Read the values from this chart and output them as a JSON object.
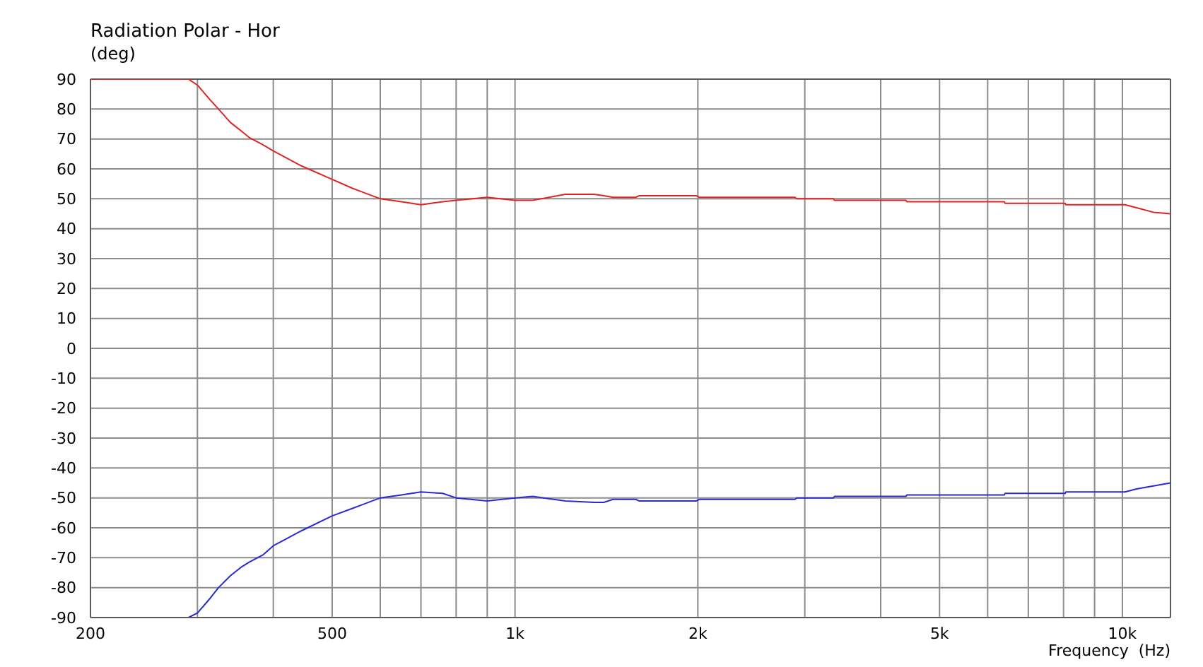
{
  "chart_data": {
    "type": "line",
    "title": "Radiation Polar - Hor",
    "ylabel": "(deg)",
    "xlabel": "Frequency  (Hz)",
    "x": [
      200,
      290,
      300,
      315,
      325,
      340,
      355,
      365,
      385,
      400,
      445,
      500,
      540,
      600,
      650,
      700,
      760,
      800,
      900,
      1000,
      1070,
      1210,
      1350,
      1400,
      1450,
      1580,
      1600,
      1990,
      2010,
      2890,
      2910,
      3340,
      3360,
      4400,
      4420,
      6390,
      6410,
      8050,
      8070,
      10100,
      10550,
      11250,
      12000
    ],
    "series": [
      {
        "color": "#e02424",
        "values": [
          90,
          90,
          88,
          83,
          80,
          75.5,
          72.5,
          70.5,
          68,
          66,
          61,
          56.5,
          53.5,
          50,
          49,
          48,
          49,
          49.5,
          50.5,
          49.5,
          49.5,
          51.5,
          51.5,
          51,
          50.5,
          50.5,
          51,
          51,
          50.5,
          50.5,
          50,
          50,
          49.5,
          49.5,
          49,
          49,
          48.5,
          48.5,
          48,
          48,
          47,
          45.5,
          45
        ]
      },
      {
        "color": "#2a2ad2",
        "values": [
          -90,
          -90,
          -88.5,
          -83.5,
          -80,
          -76,
          -73,
          -71.5,
          -69,
          -66,
          -61,
          -56,
          -53.5,
          -50,
          -49,
          -48,
          -48.5,
          -50,
          -51,
          -50,
          -49.5,
          -51,
          -51.5,
          -51.5,
          -50.5,
          -50.5,
          -51,
          -51,
          -50.5,
          -50.5,
          -50,
          -50,
          -49.5,
          -49.5,
          -49,
          -49,
          -48.5,
          -48.5,
          -48,
          -48,
          -47,
          -46,
          -45
        ]
      }
    ],
    "xlim": [
      200,
      12000
    ],
    "xticks": [
      200,
      {
        "value": 300,
        "label": null
      },
      {
        "value": 400,
        "label": null
      },
      500,
      {
        "value": 600,
        "label": null
      },
      {
        "value": 700,
        "label": null
      },
      {
        "value": 800,
        "label": null
      },
      {
        "value": 900,
        "label": null
      },
      {
        "value": 1000,
        "label": "1k"
      },
      {
        "value": 2000,
        "label": "2k"
      },
      {
        "value": 3000,
        "label": null
      },
      {
        "value": 4000,
        "label": null
      },
      {
        "value": 5000,
        "label": "5k"
      },
      {
        "value": 6000,
        "label": null
      },
      {
        "value": 7000,
        "label": null
      },
      {
        "value": 8000,
        "label": null
      },
      {
        "value": 9000,
        "label": null
      },
      {
        "value": 10000,
        "label": "10k"
      }
    ],
    "ylim": [
      -90,
      90
    ],
    "yticks": [
      -90,
      -80,
      -70,
      -60,
      -50,
      -40,
      -30,
      -20,
      -10,
      0,
      10,
      20,
      30,
      40,
      50,
      60,
      70,
      80,
      90
    ],
    "log": "x",
    "grid": true
  }
}
